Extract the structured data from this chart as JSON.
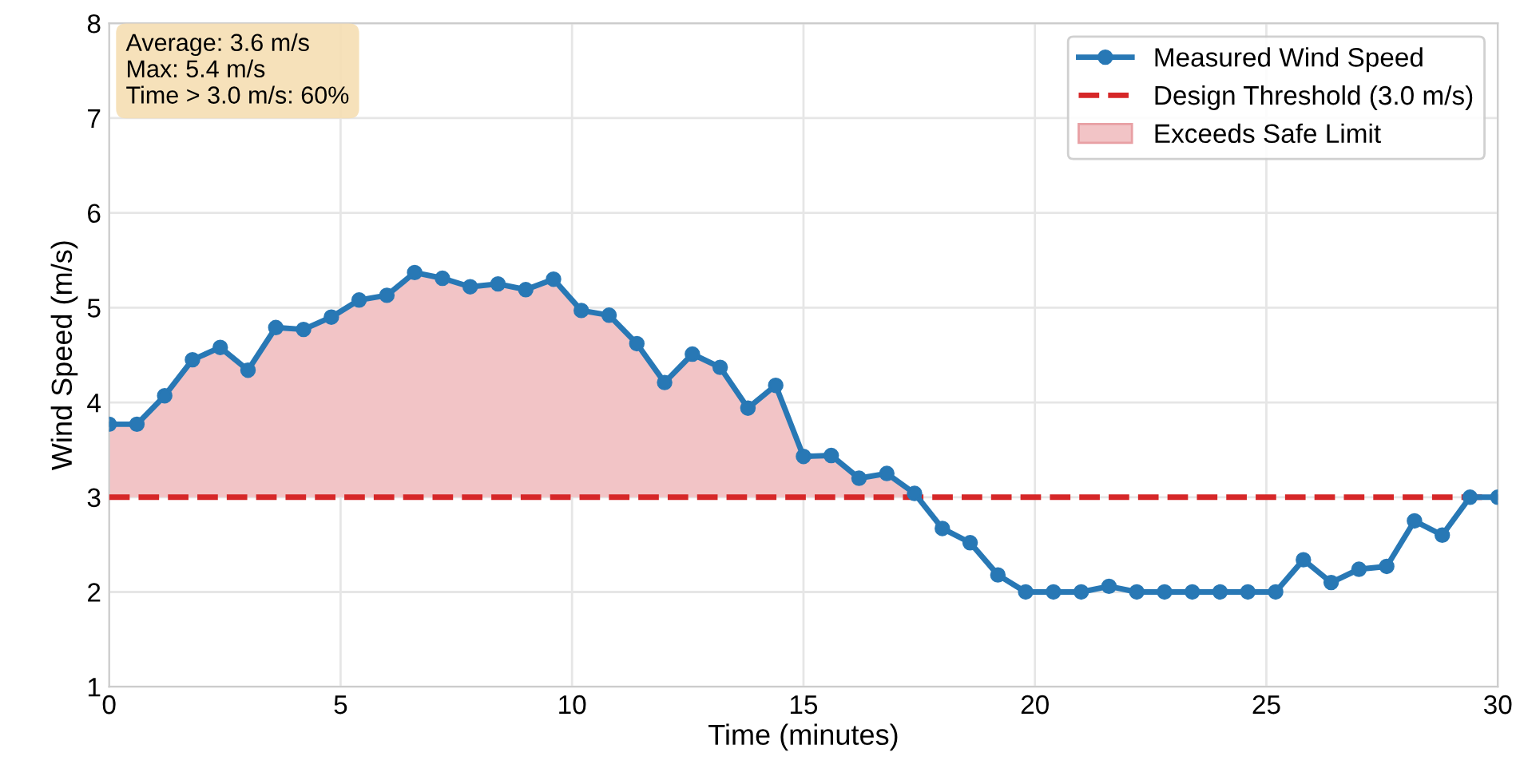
{
  "chart_data": {
    "type": "line",
    "xlabel": "Time (minutes)",
    "ylabel": "Wind Speed (m/s)",
    "x": [
      0,
      0.6,
      1.2,
      1.8,
      2.4,
      3.0,
      3.6,
      4.2,
      4.8,
      5.4,
      6.0,
      6.6,
      7.2,
      7.8,
      8.4,
      9.0,
      9.6,
      10.2,
      10.8,
      11.4,
      12.0,
      12.6,
      13.2,
      13.8,
      14.4,
      15.0,
      15.6,
      16.2,
      16.8,
      17.4,
      18.0,
      18.6,
      19.2,
      19.8,
      20.4,
      21.0,
      21.6,
      22.2,
      22.8,
      23.4,
      24.0,
      24.6,
      25.2,
      25.8,
      26.4,
      27.0,
      27.6,
      28.2,
      28.8,
      29.4,
      30.0
    ],
    "series": [
      {
        "name": "Measured Wind Speed",
        "color": "#2878b5",
        "marker": "circle",
        "line_style": "solid",
        "values": [
          3.77,
          3.77,
          4.07,
          4.45,
          4.58,
          4.34,
          4.79,
          4.77,
          4.9,
          5.08,
          5.13,
          5.37,
          5.31,
          5.22,
          5.25,
          5.19,
          5.3,
          4.97,
          4.92,
          4.62,
          4.21,
          4.51,
          4.37,
          3.94,
          4.18,
          3.43,
          3.44,
          3.2,
          3.25,
          3.04,
          2.67,
          2.52,
          2.18,
          2.0,
          2.0,
          2.0,
          2.06,
          2.0,
          2.0,
          2.0,
          2.0,
          2.0,
          2.0,
          2.34,
          2.1,
          2.24,
          2.27,
          2.75,
          2.6,
          3.0,
          3.0
        ]
      },
      {
        "name": "Exceeds Safe Limit",
        "type": "area",
        "color": "#f2c4c6",
        "x": [
          0,
          0.6,
          1.2,
          1.8,
          2.4,
          3.0,
          3.6,
          4.2,
          4.8,
          5.4,
          6.0,
          6.6,
          7.2,
          7.8,
          8.4,
          9.0,
          9.6,
          10.2,
          10.8,
          11.4,
          12.0,
          12.6,
          13.2,
          13.8,
          14.4,
          15.0,
          15.6,
          16.2,
          16.8,
          17.4,
          17.46
        ],
        "values": [
          3.77,
          3.77,
          4.07,
          4.45,
          4.58,
          4.34,
          4.79,
          4.77,
          4.9,
          5.08,
          5.13,
          5.37,
          5.31,
          5.22,
          5.25,
          5.19,
          5.3,
          4.97,
          4.92,
          4.62,
          4.21,
          4.51,
          4.37,
          3.94,
          4.18,
          3.43,
          3.44,
          3.2,
          3.25,
          3.04,
          3.0
        ]
      }
    ],
    "ref_lines": [
      {
        "axis": "y",
        "value": 3.0,
        "label": "Design Threshold (3.0 m/s)",
        "color": "#d62728",
        "line_style": "dashed"
      }
    ],
    "annotations": [
      "Average: 3.6 m/s\nMax: 5.4 m/s\nTime > 3.0 m/s: 60%"
    ],
    "xlim": [
      0,
      30
    ],
    "xticks": [
      0,
      5,
      10,
      15,
      20,
      25,
      30
    ],
    "ylim": [
      1,
      8
    ],
    "yticks": [
      1,
      2,
      3,
      4,
      5,
      6,
      7,
      8
    ],
    "grid": true,
    "legend": "top right"
  }
}
